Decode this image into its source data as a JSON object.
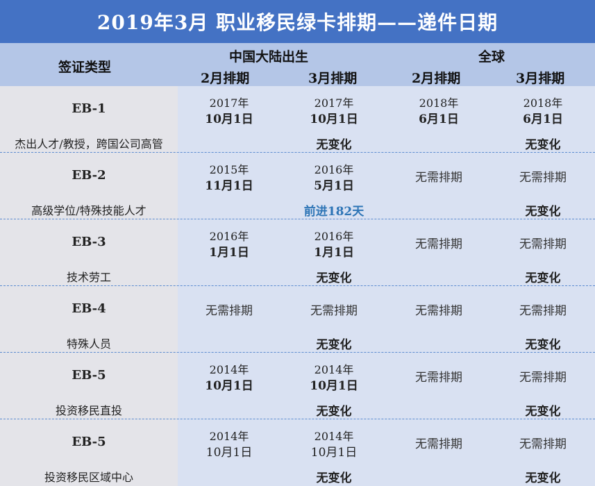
{
  "title": "2019年3月  职业移民绿卡排期——递件日期",
  "header": {
    "visa_type": "签证类型",
    "group_china": "中国大陆出生",
    "group_global": "全球",
    "col_feb_china": "2月排期",
    "col_mar_china": "3月排期",
    "col_feb_global": "2月排期",
    "col_mar_global": "3月排期"
  },
  "rows": [
    {
      "code": "EB-1",
      "desc": "杰出人才/教授，跨国公司高管",
      "china_feb": {
        "year": "2017年",
        "md": "10月1日"
      },
      "china_mar": {
        "year": "2017年",
        "md": "10月1日"
      },
      "global_feb": {
        "year": "2018年",
        "md": "6月1日"
      },
      "global_mar": {
        "year": "2018年",
        "md": "6月1日"
      },
      "china_change": "无变化",
      "global_change": "无变化"
    },
    {
      "code": "EB-2",
      "desc": "高级学位/特殊技能人才",
      "china_feb": {
        "year": "2015年",
        "md": "11月1日"
      },
      "china_mar": {
        "year": "2016年",
        "md": "5月1日"
      },
      "global_feb": {
        "text": "无需排期"
      },
      "global_mar": {
        "text": "无需排期"
      },
      "china_change": "前进182天",
      "global_change": "无变化"
    },
    {
      "code": "EB-3",
      "desc": "技术劳工",
      "china_feb": {
        "year": "2016年",
        "md": "1月1日"
      },
      "china_mar": {
        "year": "2016年",
        "md": "1月1日"
      },
      "global_feb": {
        "text": "无需排期"
      },
      "global_mar": {
        "text": "无需排期"
      },
      "china_change": "无变化",
      "global_change": "无变化"
    },
    {
      "code": "EB-4",
      "desc": "特殊人员",
      "china_feb": {
        "text": "无需排期"
      },
      "china_mar": {
        "text": "无需排期"
      },
      "global_feb": {
        "text": "无需排期"
      },
      "global_mar": {
        "text": "无需排期"
      },
      "china_change": "无变化",
      "global_change": "无变化"
    },
    {
      "code": "EB-5",
      "desc": "投资移民直投",
      "china_feb": {
        "year": "2014年",
        "md": "10月1日"
      },
      "china_mar": {
        "year": "2014年",
        "md": "10月1日"
      },
      "global_feb": {
        "text": "无需排期"
      },
      "global_mar": {
        "text": "无需排期"
      },
      "china_change": "无变化",
      "global_change": "无变化"
    },
    {
      "code": "EB-5",
      "desc": "投资移民区域中心",
      "china_feb": {
        "year": "2014年",
        "md": "10月1日"
      },
      "china_mar": {
        "year": "2014年",
        "md": "10月1日"
      },
      "global_feb": {
        "text": "无需排期"
      },
      "global_mar": {
        "text": "无需排期"
      },
      "china_change": "无变化",
      "global_change": "无变化"
    }
  ]
}
